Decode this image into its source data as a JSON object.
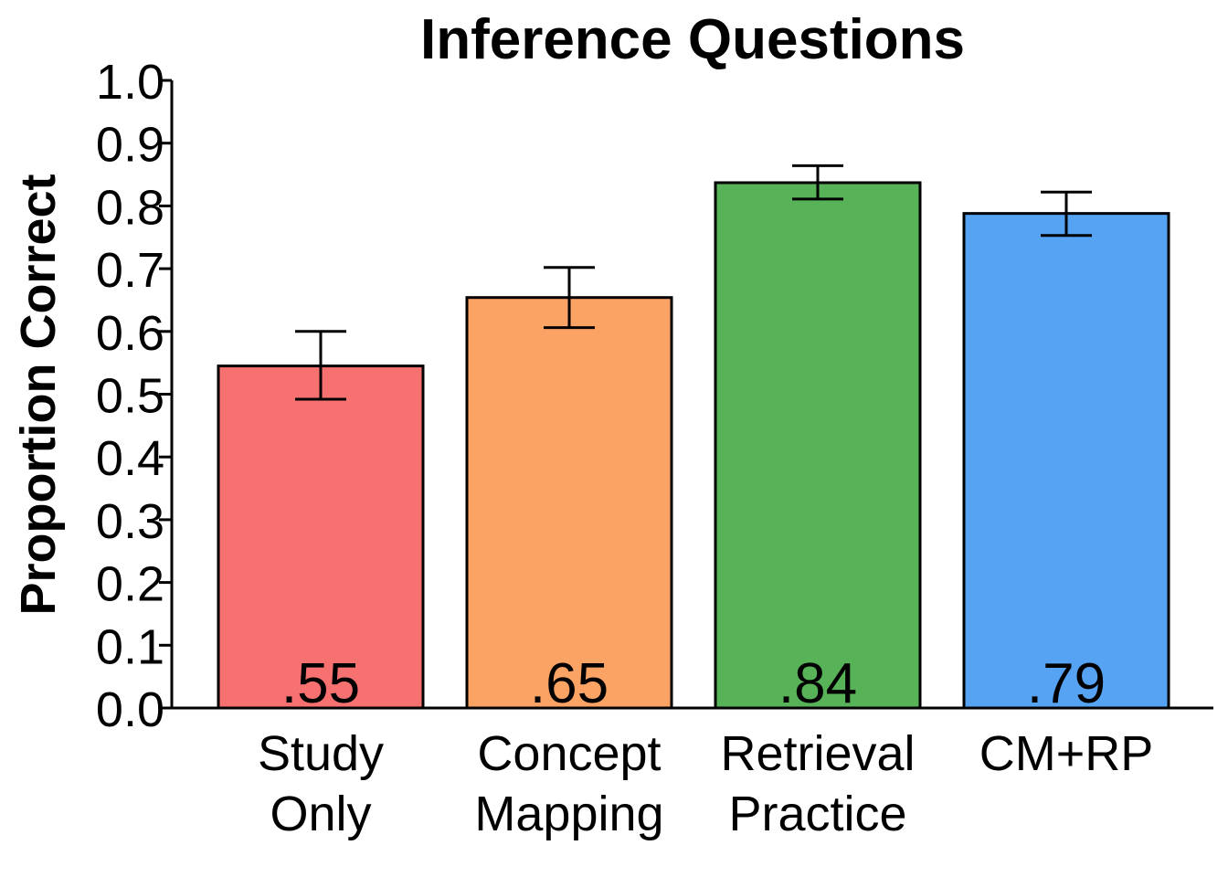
{
  "chart_data": {
    "type": "bar",
    "title": "Inference Questions",
    "xlabel": "",
    "ylabel": "Proportion Correct",
    "ylim": [
      0,
      1.0
    ],
    "yticks": [
      "0.0",
      "0.1",
      "0.2",
      "0.3",
      "0.4",
      "0.5",
      "0.6",
      "0.7",
      "0.8",
      "0.9",
      "1.0"
    ],
    "grid": false,
    "categories": [
      [
        "Study",
        "Only"
      ],
      [
        "Concept",
        "Mapping"
      ],
      [
        "Retrieval",
        "Practice"
      ],
      [
        "CM+RP"
      ]
    ],
    "values": [
      0.545,
      0.654,
      0.837,
      0.788
    ],
    "value_labels": [
      ".55",
      ".65",
      ".84",
      ".79"
    ],
    "error_bars": [
      {
        "low": 0.492,
        "high": 0.6
      },
      {
        "low": 0.606,
        "high": 0.702
      },
      {
        "low": 0.811,
        "high": 0.864
      },
      {
        "low": 0.753,
        "high": 0.822
      }
    ],
    "colors": [
      "#F87171",
      "#FBA265",
      "#58B257",
      "#55A3F2"
    ]
  }
}
